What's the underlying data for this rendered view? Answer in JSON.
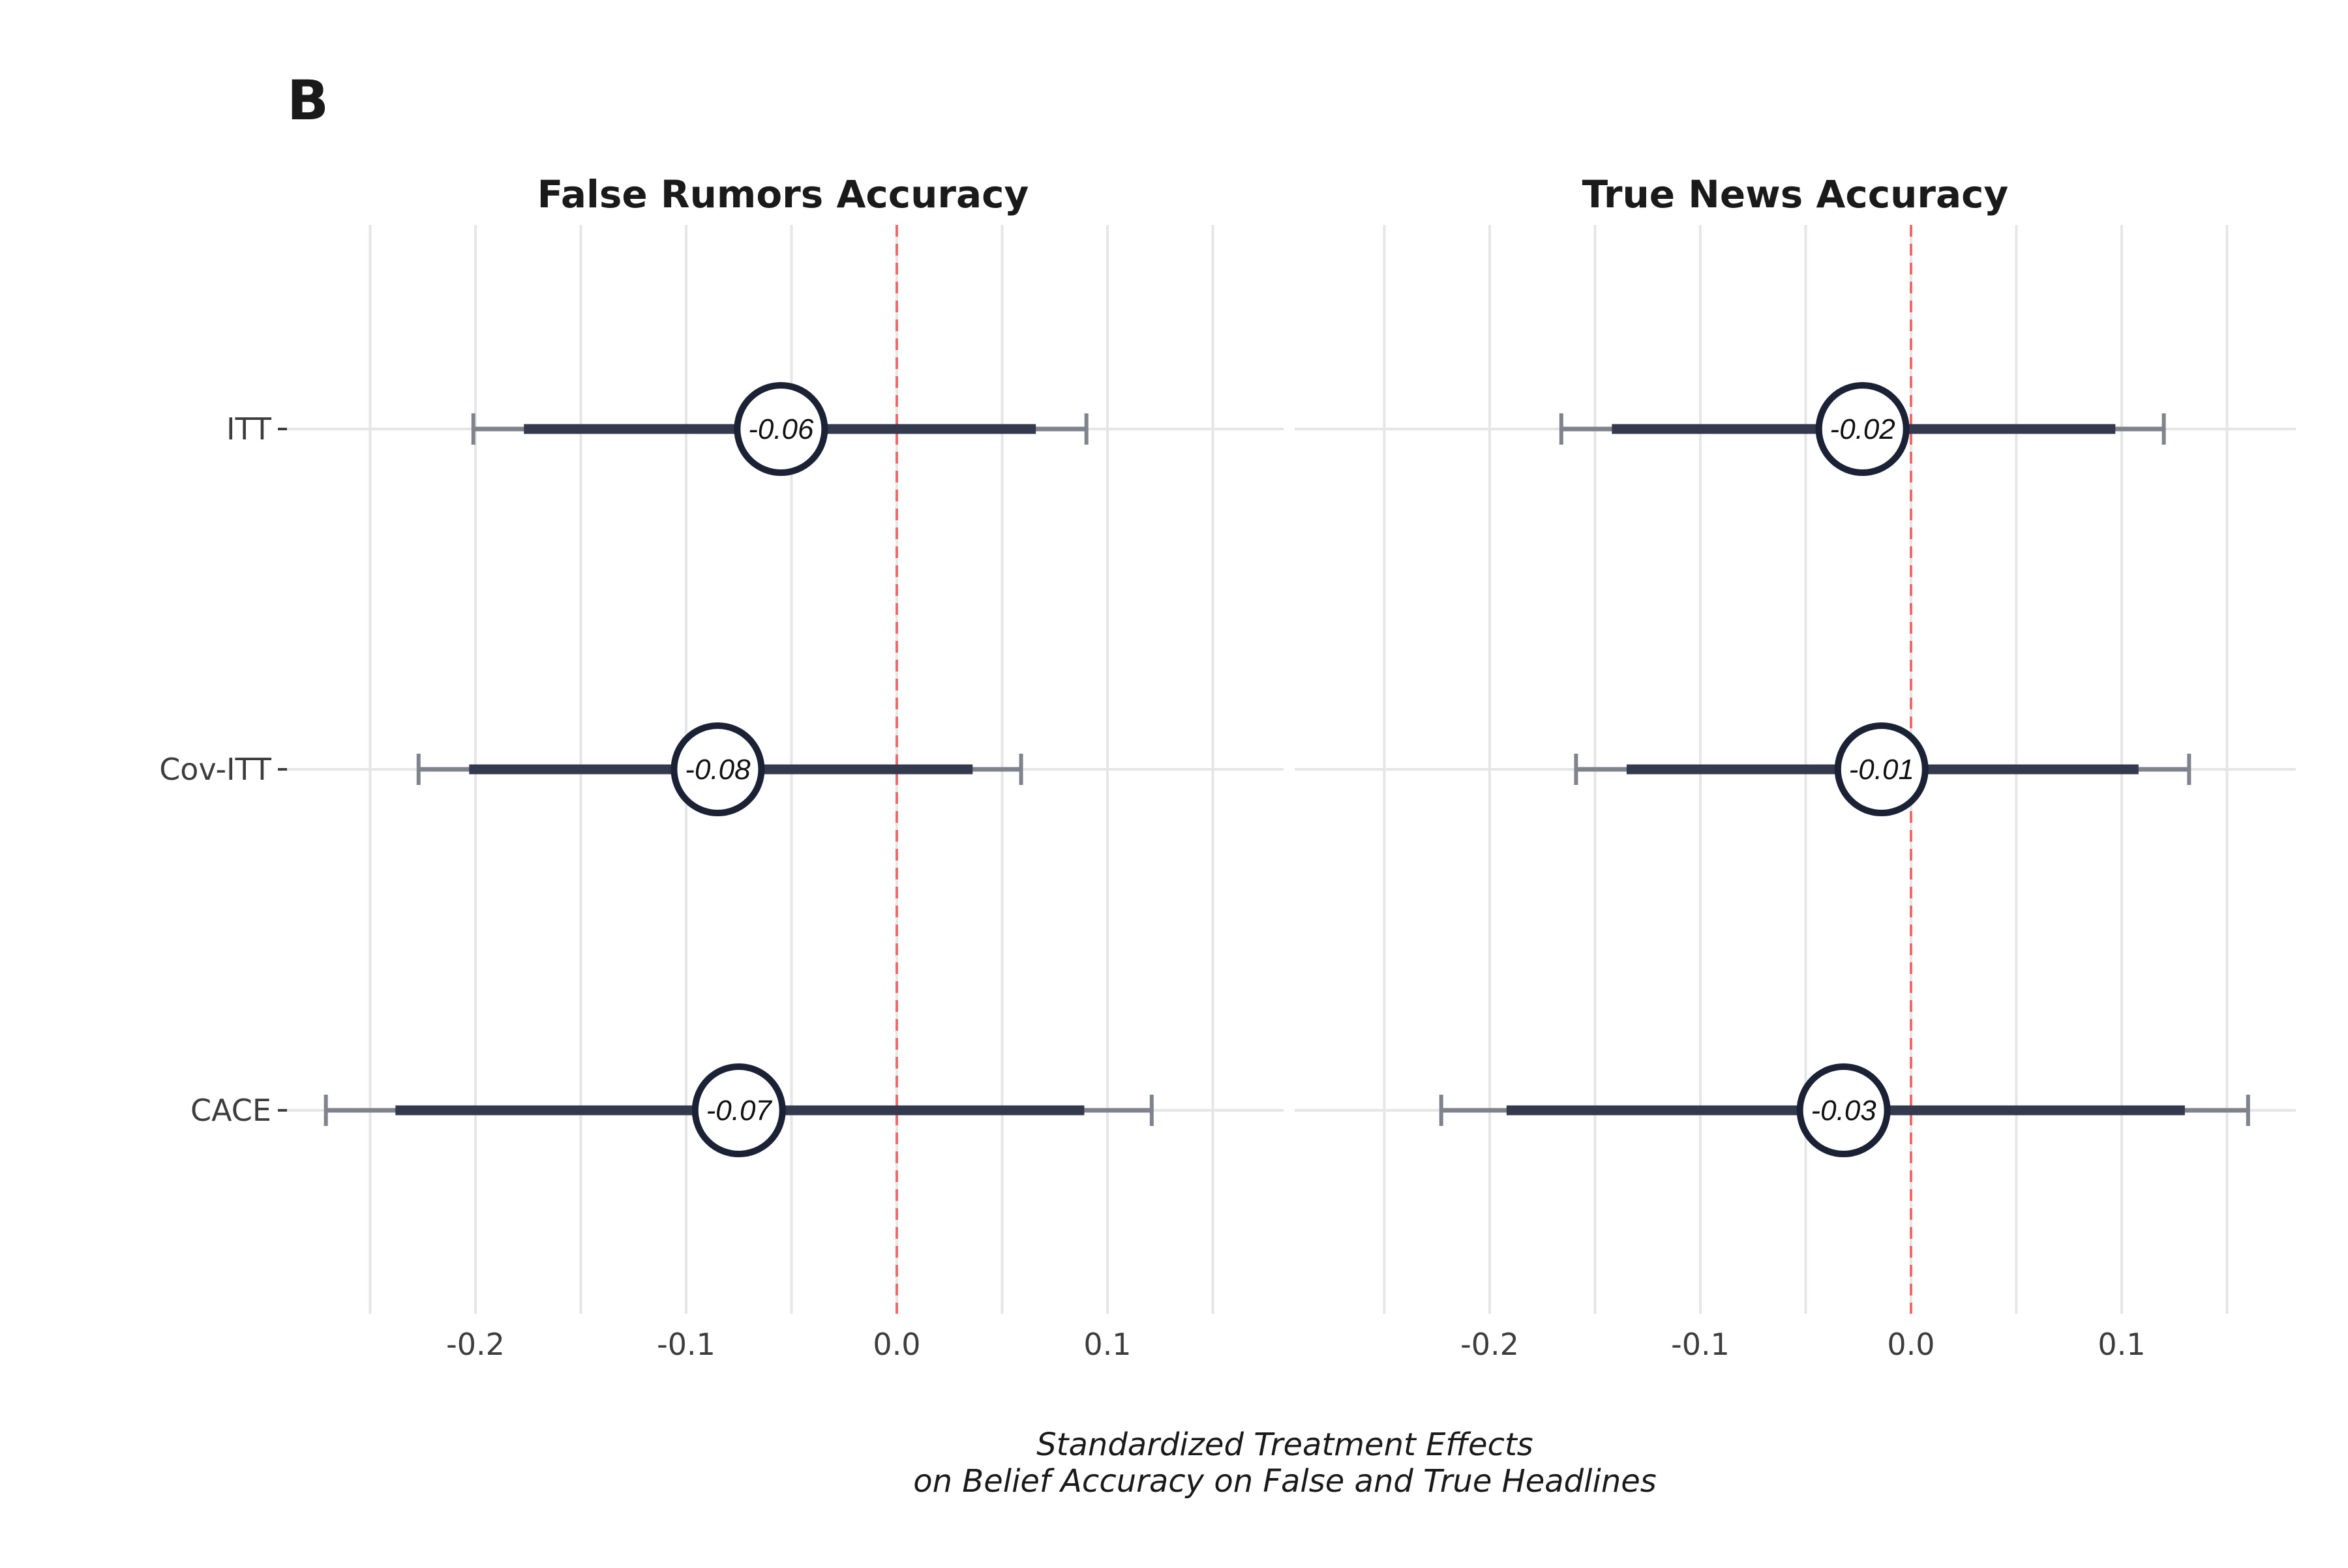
{
  "panel_label": "B",
  "xlabel_line1": "Standardized Treatment Effects",
  "xlabel_line2": "on Belief Accuracy on False and True Headlines",
  "colors": {
    "grid": "#e6e6e6",
    "outer_ci": "#7f838c",
    "inner_ci": "#333a4e",
    "circle_stroke": "#1c2235",
    "zero_line": "#f06a6a",
    "text": "#1a1a1a"
  },
  "chart_data": [
    {
      "type": "forest",
      "title": "False Rumors Accuracy",
      "categories": [
        "ITT",
        "Cov-ITT",
        "CACE"
      ],
      "xlim": [
        -0.25,
        0.15
      ],
      "xticks": [
        -0.2,
        -0.1,
        0.0,
        0.1
      ],
      "xtick_labels": [
        "-0.2",
        "-0.1",
        "0.0",
        "0.1"
      ],
      "reference_line": 0,
      "estimates": [
        {
          "label": "ITT",
          "estimate": -0.055,
          "estimate_label": "-0.06",
          "ci95": [
            -0.201,
            0.09
          ],
          "ci90": [
            -0.177,
            0.066
          ]
        },
        {
          "label": "Cov-ITT",
          "estimate": -0.085,
          "estimate_label": "-0.08",
          "ci95": [
            -0.227,
            0.059
          ],
          "ci90": [
            -0.203,
            0.036
          ]
        },
        {
          "label": "CACE",
          "estimate": -0.075,
          "estimate_label": "-0.07",
          "ci95": [
            -0.271,
            0.121
          ],
          "ci90": [
            -0.238,
            0.089
          ]
        }
      ]
    },
    {
      "type": "forest",
      "title": "True News Accuracy",
      "categories": [
        "ITT",
        "Cov-ITT",
        "CACE"
      ],
      "xlim": [
        -0.25,
        0.15
      ],
      "xticks": [
        -0.2,
        -0.1,
        0.0,
        0.1
      ],
      "xtick_labels": [
        "-0.2",
        "-0.1",
        "0.0",
        "0.1"
      ],
      "reference_line": 0,
      "estimates": [
        {
          "label": "ITT",
          "estimate": -0.023,
          "estimate_label": "-0.02",
          "ci95": [
            -0.166,
            0.12
          ],
          "ci90": [
            -0.142,
            0.097
          ]
        },
        {
          "label": "Cov-ITT",
          "estimate": -0.014,
          "estimate_label": "-0.01",
          "ci95": [
            -0.159,
            0.132
          ],
          "ci90": [
            -0.135,
            0.108
          ]
        },
        {
          "label": "CACE",
          "estimate": -0.032,
          "estimate_label": "-0.03",
          "ci95": [
            -0.223,
            0.16
          ],
          "ci90": [
            -0.192,
            0.13
          ]
        }
      ]
    }
  ]
}
